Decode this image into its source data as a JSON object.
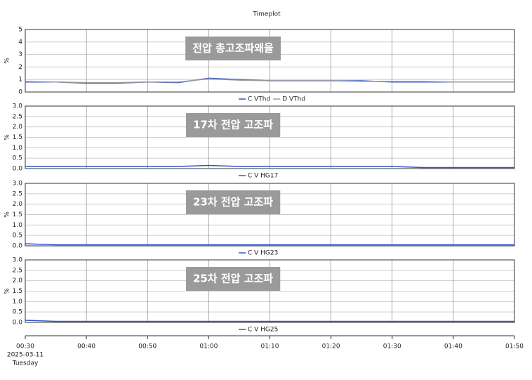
{
  "chart_data": [
    {
      "type": "line",
      "title": "Timeplot",
      "ylabel": "%",
      "annotation": "전압 총고조파왜율",
      "x": [
        "00:30",
        "00:35",
        "00:40",
        "00:45",
        "00:50",
        "00:55",
        "01:00",
        "01:05",
        "01:10",
        "01:15",
        "01:20",
        "01:25",
        "01:30",
        "01:35",
        "01:40",
        "01:45",
        "01:50"
      ],
      "series": [
        {
          "name": "C VThd",
          "color": "#3355cc",
          "values": [
            0.8,
            0.8,
            0.7,
            0.7,
            0.8,
            0.75,
            1.1,
            1.0,
            0.9,
            0.9,
            0.9,
            0.9,
            0.8,
            0.8,
            0.8,
            0.8,
            0.8
          ]
        },
        {
          "name": "D VThd",
          "color": "#9a9a9a",
          "values": [
            0.85,
            0.8,
            0.75,
            0.75,
            0.8,
            0.8,
            1.05,
            0.95,
            0.9,
            0.9,
            0.9,
            0.85,
            0.85,
            0.85,
            0.8,
            0.8,
            0.8
          ]
        }
      ],
      "xlim": [
        "00:30",
        "01:50"
      ],
      "xticks": [
        "00:30",
        "00:40",
        "00:50",
        "01:00",
        "01:10",
        "01:20",
        "01:30",
        "01:40",
        "01:50"
      ],
      "ylim": [
        0,
        5
      ],
      "yticks": [
        0,
        1,
        2,
        3,
        4,
        5
      ],
      "grid": true
    },
    {
      "type": "line",
      "ylabel": "%",
      "annotation": "17차 전압 고조파",
      "x": [
        "00:30",
        "00:35",
        "00:40",
        "00:45",
        "00:50",
        "00:55",
        "01:00",
        "01:05",
        "01:10",
        "01:15",
        "01:20",
        "01:25",
        "01:30",
        "01:35",
        "01:40",
        "01:45",
        "01:50"
      ],
      "series": [
        {
          "name": "C V HG17",
          "color": "#3355cc",
          "values": [
            0.1,
            0.1,
            0.1,
            0.1,
            0.1,
            0.1,
            0.15,
            0.1,
            0.1,
            0.1,
            0.1,
            0.1,
            0.1,
            0.05,
            0.05,
            0.05,
            0.05
          ]
        }
      ],
      "xlim": [
        "00:30",
        "01:50"
      ],
      "xticks": [
        "00:30",
        "00:40",
        "00:50",
        "01:00",
        "01:10",
        "01:20",
        "01:30",
        "01:40",
        "01:50"
      ],
      "ylim": [
        0,
        3
      ],
      "yticks": [
        {
          "value": 0,
          "label": "0.0"
        },
        {
          "value": 0.5,
          "label": "0.5"
        },
        {
          "value": 1,
          "label": "1.0"
        },
        {
          "value": 1.5,
          "label": "1.5"
        },
        {
          "value": 2,
          "label": "2.0"
        },
        {
          "value": 2.5,
          "label": "2.5"
        },
        {
          "value": 3,
          "label": "3.0"
        }
      ],
      "grid": true
    },
    {
      "type": "line",
      "ylabel": "%",
      "annotation": "23차 전압 고조파",
      "x": [
        "00:30",
        "00:35",
        "00:40",
        "00:45",
        "00:50",
        "00:55",
        "01:00",
        "01:05",
        "01:10",
        "01:15",
        "01:20",
        "01:25",
        "01:30",
        "01:35",
        "01:40",
        "01:45",
        "01:50"
      ],
      "series": [
        {
          "name": "C V HG23",
          "color": "#3355cc",
          "values": [
            0.1,
            0.05,
            0.05,
            0.05,
            0.05,
            0.05,
            0.05,
            0.05,
            0.05,
            0.05,
            0.05,
            0.05,
            0.05,
            0.05,
            0.05,
            0.05,
            0.05
          ]
        }
      ],
      "xlim": [
        "00:30",
        "01:50"
      ],
      "xticks": [
        "00:30",
        "00:40",
        "00:50",
        "01:00",
        "01:10",
        "01:20",
        "01:30",
        "01:40",
        "01:50"
      ],
      "ylim": [
        0,
        3
      ],
      "yticks": [
        {
          "value": 0,
          "label": "0.0"
        },
        {
          "value": 0.5,
          "label": "0.5"
        },
        {
          "value": 1,
          "label": "1.0"
        },
        {
          "value": 1.5,
          "label": "1.5"
        },
        {
          "value": 2,
          "label": "2.0"
        },
        {
          "value": 2.5,
          "label": "2.5"
        },
        {
          "value": 3,
          "label": "3.0"
        }
      ],
      "grid": true
    },
    {
      "type": "line",
      "ylabel": "%",
      "annotation": "25차 전압 고조파",
      "x": [
        "00:30",
        "00:35",
        "00:40",
        "00:45",
        "00:50",
        "00:55",
        "01:00",
        "01:05",
        "01:10",
        "01:15",
        "01:20",
        "01:25",
        "01:30",
        "01:35",
        "01:40",
        "01:45",
        "01:50"
      ],
      "series": [
        {
          "name": "C V HG25",
          "color": "#3355cc",
          "values": [
            0.1,
            0.05,
            0.05,
            0.05,
            0.05,
            0.05,
            0.05,
            0.05,
            0.05,
            0.05,
            0.05,
            0.05,
            0.05,
            0.05,
            0.05,
            0.05,
            0.05
          ]
        }
      ],
      "xlim": [
        "00:30",
        "01:50"
      ],
      "xticks": [
        "00:30",
        "00:40",
        "00:50",
        "01:00",
        "01:10",
        "01:20",
        "01:30",
        "01:40",
        "01:50"
      ],
      "ylim": [
        0,
        3
      ],
      "yticks": [
        {
          "value": 0,
          "label": "0.0"
        },
        {
          "value": 0.5,
          "label": "0.5"
        },
        {
          "value": 1,
          "label": "1.0"
        },
        {
          "value": 1.5,
          "label": "1.5"
        },
        {
          "value": 2,
          "label": "2.0"
        },
        {
          "value": 2.5,
          "label": "2.5"
        },
        {
          "value": 3,
          "label": "3.0"
        }
      ],
      "grid": true,
      "date": "2025-03-11",
      "weekday": "Tuesday"
    }
  ]
}
